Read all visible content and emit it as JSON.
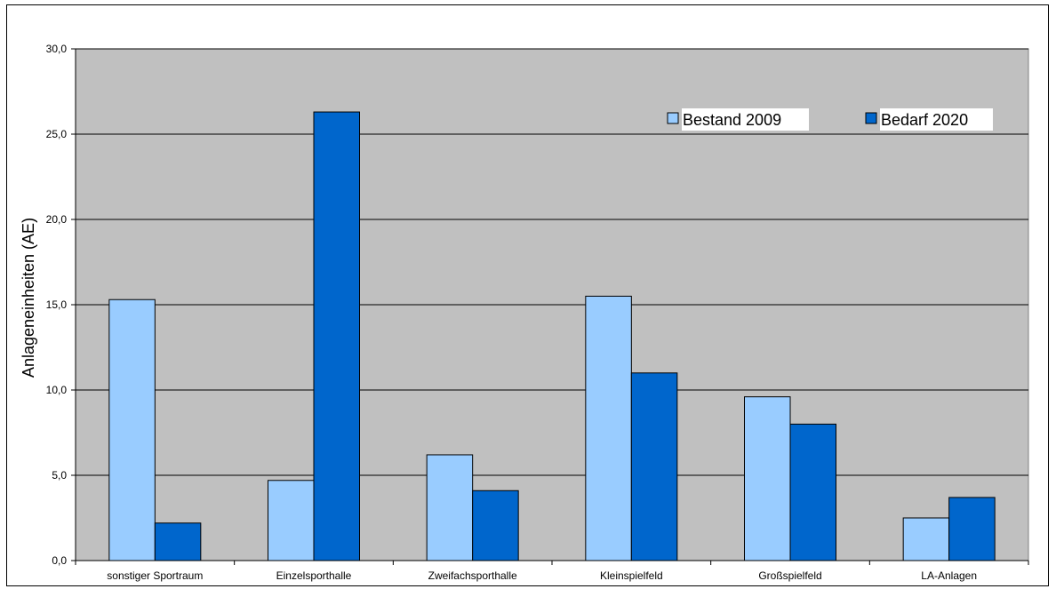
{
  "chart_data": {
    "type": "bar",
    "title": "",
    "xlabel": "",
    "ylabel": "Anlageneinheiten (AE)",
    "ylim": [
      0,
      30
    ],
    "yticks": [
      "0,0",
      "5,0",
      "10,0",
      "15,0",
      "20,0",
      "25,0",
      "30,0"
    ],
    "ytick_values": [
      0,
      5,
      10,
      15,
      20,
      25,
      30
    ],
    "grid": true,
    "legend_position": "top-right",
    "categories": [
      "sonstiger Sportraum",
      "Einzelsporthalle",
      "Zweifachsporthalle",
      "Kleinspielfeld",
      "Großspielfeld",
      "LA-Anlagen"
    ],
    "series": [
      {
        "name": "Bestand 2009",
        "color": "#99ccff",
        "values": [
          15.3,
          4.7,
          6.2,
          15.5,
          9.6,
          2.5
        ]
      },
      {
        "name": "Bedarf 2020",
        "color": "#0066cc",
        "values": [
          2.2,
          26.3,
          4.1,
          11.0,
          8.0,
          3.7
        ]
      }
    ],
    "plot_background": "#c0c0c0"
  }
}
